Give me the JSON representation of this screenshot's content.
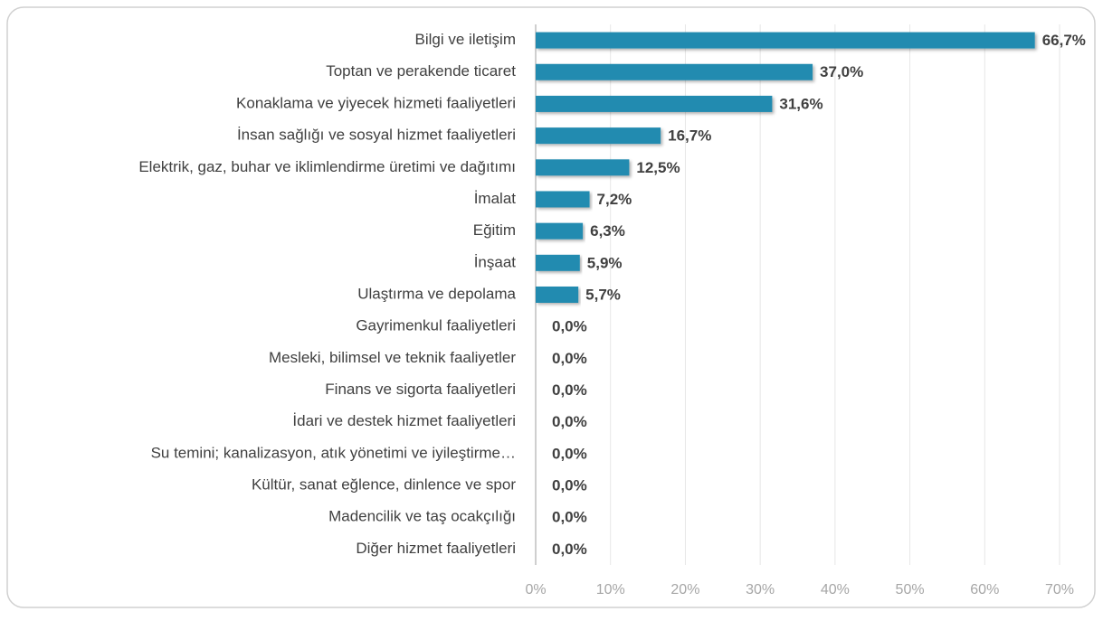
{
  "chart_data": {
    "type": "bar",
    "orientation": "horizontal",
    "categories": [
      "Bilgi ve iletişim",
      "Toptan ve perakende ticaret",
      "Konaklama ve yiyecek hizmeti faaliyetleri",
      "İnsan sağlığı ve sosyal hizmet faaliyetleri",
      "Elektrik, gaz, buhar ve iklimlendirme üretimi ve dağıtımı",
      "İmalat",
      "Eğitim",
      "İnşaat",
      "Ulaştırma ve depolama",
      "Gayrimenkul faaliyetleri",
      "Mesleki, bilimsel ve teknik faaliyetler",
      "Finans ve sigorta faaliyetleri",
      "İdari ve destek hizmet faaliyetleri",
      "Su temini; kanalizasyon, atık yönetimi ve iyileştirme…",
      "Kültür, sanat eğlence, dinlence ve spor",
      "Madencilik ve taş ocakçılığı",
      "Diğer hizmet faaliyetleri"
    ],
    "values": [
      66.7,
      37.0,
      31.6,
      16.7,
      12.5,
      7.2,
      6.3,
      5.9,
      5.7,
      0,
      0,
      0,
      0,
      0,
      0,
      0,
      0
    ],
    "value_labels": [
      "66,7%",
      "37,0%",
      "31,6%",
      "16,7%",
      "12,5%",
      "7,2%",
      "6,3%",
      "5,9%",
      "5,7%",
      "0,0%",
      "0,0%",
      "0,0%",
      "0,0%",
      "0,0%",
      "0,0%",
      "0,0%",
      "0,0%"
    ],
    "color": "#238bb0",
    "xlim": [
      0,
      70
    ],
    "xticks": [
      {
        "value": 0,
        "label": "0%"
      },
      {
        "value": 10,
        "label": "10%"
      },
      {
        "value": 20,
        "label": "20%"
      },
      {
        "value": 30,
        "label": "30%"
      },
      {
        "value": 40,
        "label": "40%"
      },
      {
        "value": 50,
        "label": "50%"
      },
      {
        "value": 60,
        "label": "60%"
      },
      {
        "value": 70,
        "label": "70%"
      }
    ],
    "grid": true
  }
}
